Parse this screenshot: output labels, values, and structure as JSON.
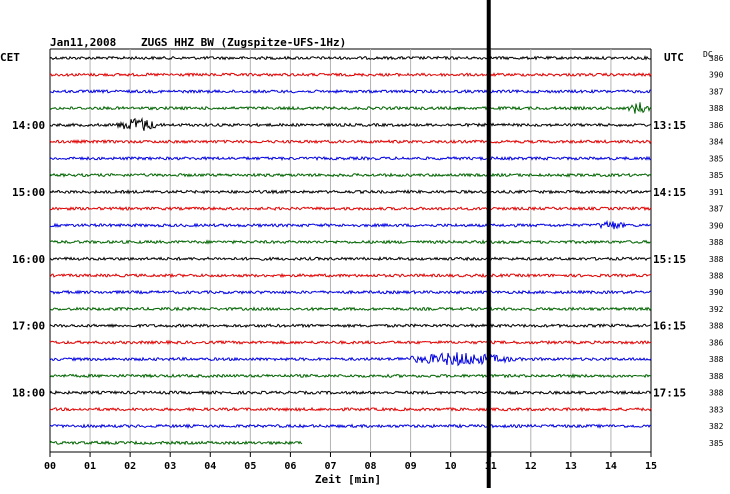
{
  "header": {
    "date": "Jan11,2008",
    "station": "ZUGS HHZ BW (Zugspitze-UFS-1Hz)"
  },
  "left_tz": "CET",
  "right_tz": "UTC",
  "dc_label": "DC",
  "colors": {
    "traces": [
      "#000000",
      "#e00000",
      "#0000e0",
      "#006400"
    ],
    "grid": "#b4b4b4",
    "marker": "#000000"
  },
  "chart_data": {
    "type": "line",
    "xlabel": "Zeit [min]",
    "xlim": [
      0,
      15
    ],
    "x_ticks": [
      "00",
      "01",
      "02",
      "03",
      "04",
      "05",
      "06",
      "07",
      "08",
      "09",
      "10",
      "11",
      "12",
      "13",
      "14",
      "15"
    ],
    "current_time_marker_min": 10.95,
    "rows_per_hour": 4,
    "left_hour_labels": [
      {
        "row": 4,
        "text": "14:00"
      },
      {
        "row": 8,
        "text": "15:00"
      },
      {
        "row": 12,
        "text": "16:00"
      },
      {
        "row": 16,
        "text": "17:00"
      },
      {
        "row": 20,
        "text": "18:00"
      }
    ],
    "right_hour_labels": [
      {
        "row": 4,
        "text": "13:15"
      },
      {
        "row": 8,
        "text": "14:15"
      },
      {
        "row": 12,
        "text": "15:15"
      },
      {
        "row": 16,
        "text": "16:15"
      },
      {
        "row": 20,
        "text": "17:15"
      }
    ],
    "dc_offsets": [
      "386",
      "390",
      "387",
      "388",
      "386",
      "384",
      "385",
      "385",
      "391",
      "387",
      "390",
      "388",
      "388",
      "388",
      "390",
      "392",
      "388",
      "386",
      "388",
      "388",
      "388",
      "383",
      "382",
      "385"
    ],
    "last_row_end_min": 6.3,
    "events": [
      {
        "row": 3,
        "start_min": 14.4,
        "end_min": 15.0,
        "amplitude": 6
      },
      {
        "row": 4,
        "start_min": 1.6,
        "end_min": 2.8,
        "amplitude": 7
      },
      {
        "row": 10,
        "start_min": 13.6,
        "end_min": 14.4,
        "amplitude": 4
      },
      {
        "row": 18,
        "start_min": 8.6,
        "end_min": 11.8,
        "amplitude": 6
      }
    ]
  }
}
